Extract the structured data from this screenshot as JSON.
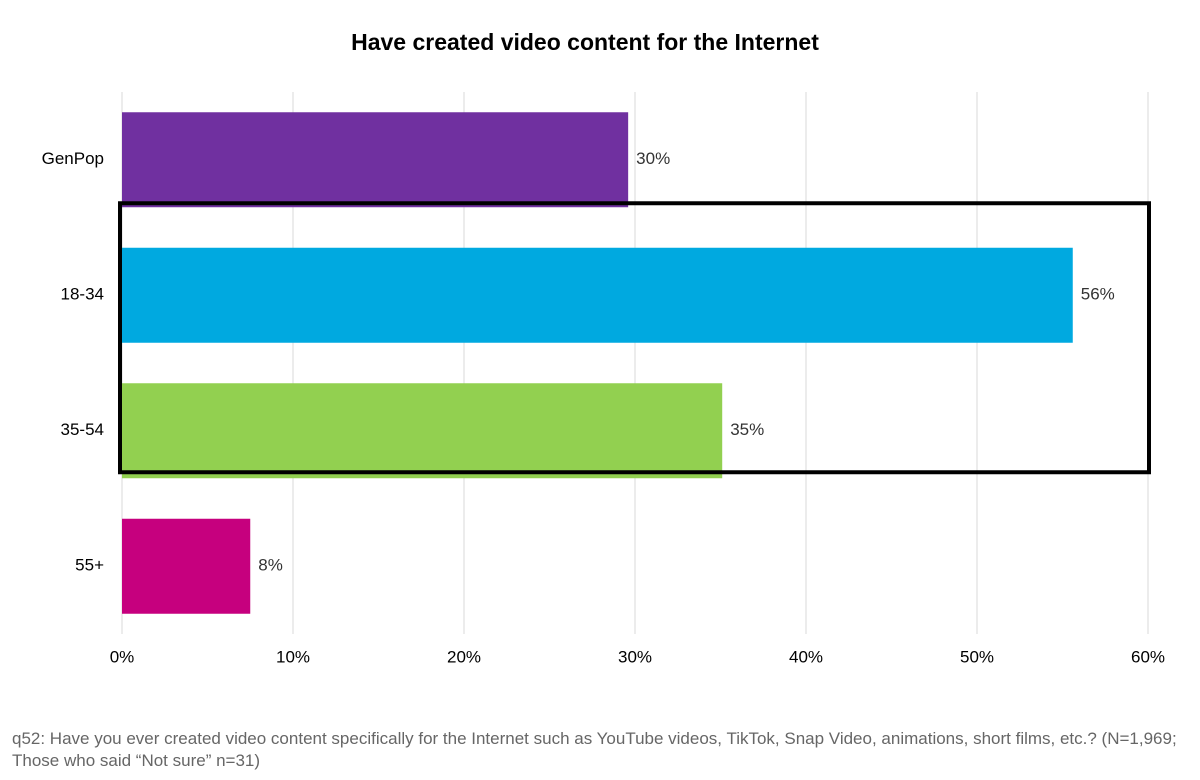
{
  "chart_data": {
    "type": "bar",
    "orientation": "horizontal",
    "title": "Have created video content for the Internet",
    "categories": [
      "GenPop",
      "18-34",
      "35-54",
      "55+"
    ],
    "values": [
      29.6,
      55.6,
      35.1,
      7.5
    ],
    "value_labels": [
      "30%",
      "56%",
      "35%",
      "8%"
    ],
    "colors": [
      "#7030a0",
      "#00a9e0",
      "#92d050",
      "#c6007e"
    ],
    "xlim": [
      0,
      60
    ],
    "xticks": [
      {
        "value": 0,
        "label": "0%"
      },
      {
        "value": 10,
        "label": "10%"
      },
      {
        "value": 20,
        "label": "20%"
      },
      {
        "value": 30,
        "label": "30%"
      },
      {
        "value": 40,
        "label": "40%"
      },
      {
        "value": 50,
        "label": "50%"
      },
      {
        "value": 60,
        "label": "60%"
      }
    ],
    "grid": true,
    "note": "q52: Have you ever created video content specifically for the Internet such as YouTube videos, TikTok, Snap Video, animations, short films, etc.? (N=1,969; Those who said “Not sure” n=31)"
  }
}
